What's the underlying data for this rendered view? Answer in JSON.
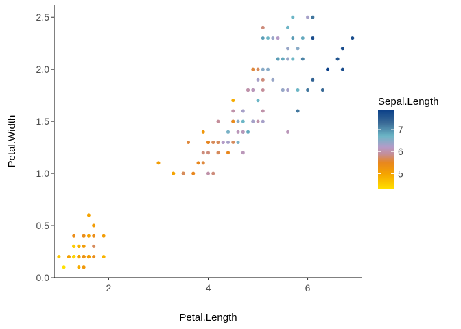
{
  "chart_data": {
    "type": "scatter",
    "title": "",
    "xlabel": "Petal.Length",
    "ylabel": "Petal.Width",
    "xlim": [
      0.905,
      7.095
    ],
    "ylim": [
      0.0,
      2.62
    ],
    "x_ticks": [
      2,
      4,
      6
    ],
    "x_tick_labels": [
      "2",
      "4",
      "6"
    ],
    "y_ticks": [
      0.0,
      0.5,
      1.0,
      1.5,
      2.0,
      2.5
    ],
    "y_tick_labels": [
      "0.0",
      "0.5",
      "1.0",
      "1.5",
      "2.0",
      "2.5"
    ],
    "grid": false,
    "legend": {
      "title": "Sepal.Length",
      "position": "right",
      "type": "colorbar",
      "range": [
        4.3,
        7.9
      ],
      "ticks": [
        5,
        6,
        7
      ],
      "tick_labels": [
        "5",
        "6",
        "7"
      ],
      "color_stops": [
        {
          "value": 4.3,
          "color": "#FFE000"
        },
        {
          "value": 5.0,
          "color": "#F5A300"
        },
        {
          "value": 5.5,
          "color": "#E8871E"
        },
        {
          "value": 5.9,
          "color": "#C48E9A"
        },
        {
          "value": 6.2,
          "color": "#B59BC8"
        },
        {
          "value": 6.7,
          "color": "#6CB6C6"
        },
        {
          "value": 7.3,
          "color": "#3A6A96"
        },
        {
          "value": 7.9,
          "color": "#0A3F88"
        }
      ]
    },
    "series": [
      {
        "color_by": "Sepal.Length",
        "points": [
          [
            1.4,
            0.2,
            5.1
          ],
          [
            1.4,
            0.2,
            4.9
          ],
          [
            1.3,
            0.2,
            4.7
          ],
          [
            1.5,
            0.2,
            4.6
          ],
          [
            1.4,
            0.2,
            5.0
          ],
          [
            1.7,
            0.4,
            5.4
          ],
          [
            1.4,
            0.3,
            4.6
          ],
          [
            1.5,
            0.2,
            5.0
          ],
          [
            1.4,
            0.2,
            4.4
          ],
          [
            1.5,
            0.1,
            4.9
          ],
          [
            1.5,
            0.2,
            5.4
          ],
          [
            1.6,
            0.2,
            4.8
          ],
          [
            1.4,
            0.1,
            4.8
          ],
          [
            1.1,
            0.1,
            4.3
          ],
          [
            1.2,
            0.2,
            5.8
          ],
          [
            1.5,
            0.4,
            5.7
          ],
          [
            1.3,
            0.4,
            5.4
          ],
          [
            1.4,
            0.3,
            5.1
          ],
          [
            1.7,
            0.3,
            5.7
          ],
          [
            1.5,
            0.3,
            5.1
          ],
          [
            1.7,
            0.2,
            5.4
          ],
          [
            1.5,
            0.4,
            5.1
          ],
          [
            1.0,
            0.2,
            4.6
          ],
          [
            1.7,
            0.5,
            5.1
          ],
          [
            1.9,
            0.2,
            4.8
          ],
          [
            1.6,
            0.2,
            5.0
          ],
          [
            1.6,
            0.4,
            5.0
          ],
          [
            1.5,
            0.2,
            5.2
          ],
          [
            1.4,
            0.2,
            5.2
          ],
          [
            1.6,
            0.2,
            4.7
          ],
          [
            1.6,
            0.2,
            4.8
          ],
          [
            1.5,
            0.4,
            5.4
          ],
          [
            1.5,
            0.1,
            5.2
          ],
          [
            1.4,
            0.2,
            5.5
          ],
          [
            1.5,
            0.2,
            4.9
          ],
          [
            1.2,
            0.2,
            5.0
          ],
          [
            1.3,
            0.2,
            5.5
          ],
          [
            1.4,
            0.1,
            4.9
          ],
          [
            1.3,
            0.2,
            4.4
          ],
          [
            1.5,
            0.2,
            5.1
          ],
          [
            1.3,
            0.3,
            5.0
          ],
          [
            1.3,
            0.3,
            4.5
          ],
          [
            1.3,
            0.2,
            4.4
          ],
          [
            1.6,
            0.6,
            5.0
          ],
          [
            1.9,
            0.4,
            5.1
          ],
          [
            1.4,
            0.3,
            4.8
          ],
          [
            1.6,
            0.2,
            5.1
          ],
          [
            1.4,
            0.2,
            4.6
          ],
          [
            1.5,
            0.2,
            5.3
          ],
          [
            1.4,
            0.2,
            5.0
          ],
          [
            4.7,
            1.4,
            7.0
          ],
          [
            4.5,
            1.5,
            6.4
          ],
          [
            4.9,
            1.5,
            6.9
          ],
          [
            4.0,
            1.3,
            5.5
          ],
          [
            4.6,
            1.5,
            6.5
          ],
          [
            4.5,
            1.3,
            5.7
          ],
          [
            4.7,
            1.6,
            6.3
          ],
          [
            3.3,
            1.0,
            4.9
          ],
          [
            4.6,
            1.3,
            6.6
          ],
          [
            3.9,
            1.4,
            5.2
          ],
          [
            3.5,
            1.0,
            5.0
          ],
          [
            4.2,
            1.5,
            5.9
          ],
          [
            4.0,
            1.0,
            6.0
          ],
          [
            4.7,
            1.4,
            6.1
          ],
          [
            3.6,
            1.3,
            5.6
          ],
          [
            4.4,
            1.4,
            6.7
          ],
          [
            4.5,
            1.5,
            5.6
          ],
          [
            4.1,
            1.0,
            5.8
          ],
          [
            4.5,
            1.5,
            6.2
          ],
          [
            3.9,
            1.1,
            5.6
          ],
          [
            4.8,
            1.8,
            5.9
          ],
          [
            4.0,
            1.3,
            6.1
          ],
          [
            4.9,
            1.5,
            6.3
          ],
          [
            4.7,
            1.2,
            6.1
          ],
          [
            4.3,
            1.3,
            6.4
          ],
          [
            4.4,
            1.4,
            6.6
          ],
          [
            4.8,
            1.4,
            6.8
          ],
          [
            5.0,
            1.7,
            6.7
          ],
          [
            4.5,
            1.5,
            6.0
          ],
          [
            3.5,
            1.0,
            5.7
          ],
          [
            3.8,
            1.1,
            5.5
          ],
          [
            3.7,
            1.0,
            5.5
          ],
          [
            3.9,
            1.2,
            5.8
          ],
          [
            5.1,
            1.6,
            6.0
          ],
          [
            4.5,
            1.5,
            5.4
          ],
          [
            4.5,
            1.6,
            6.0
          ],
          [
            4.7,
            1.5,
            6.7
          ],
          [
            4.4,
            1.3,
            6.3
          ],
          [
            4.1,
            1.3,
            5.6
          ],
          [
            4.0,
            1.3,
            5.5
          ],
          [
            4.4,
            1.2,
            5.5
          ],
          [
            4.6,
            1.4,
            6.1
          ],
          [
            4.0,
            1.2,
            5.8
          ],
          [
            3.3,
            1.0,
            5.0
          ],
          [
            4.2,
            1.3,
            5.6
          ],
          [
            4.2,
            1.2,
            5.7
          ],
          [
            4.2,
            1.3,
            5.7
          ],
          [
            4.3,
            1.3,
            6.2
          ],
          [
            3.0,
            1.1,
            5.1
          ],
          [
            4.1,
            1.3,
            5.7
          ],
          [
            6.0,
            2.5,
            6.3
          ],
          [
            5.1,
            1.9,
            5.8
          ],
          [
            5.9,
            2.1,
            7.1
          ],
          [
            5.6,
            1.8,
            6.3
          ],
          [
            5.8,
            2.2,
            6.5
          ],
          [
            6.6,
            2.1,
            7.6
          ],
          [
            4.5,
            1.7,
            4.9
          ],
          [
            6.3,
            1.8,
            7.3
          ],
          [
            5.8,
            1.8,
            6.7
          ],
          [
            6.1,
            2.5,
            7.2
          ],
          [
            5.1,
            2.0,
            6.5
          ],
          [
            5.3,
            1.9,
            6.4
          ],
          [
            5.5,
            2.1,
            6.8
          ],
          [
            5.0,
            2.0,
            5.7
          ],
          [
            5.1,
            2.4,
            5.8
          ],
          [
            5.3,
            2.3,
            6.4
          ],
          [
            5.5,
            1.8,
            6.5
          ],
          [
            6.7,
            2.2,
            7.7
          ],
          [
            6.9,
            2.3,
            7.7
          ],
          [
            5.0,
            1.5,
            6.0
          ],
          [
            5.7,
            2.3,
            6.9
          ],
          [
            4.9,
            2.0,
            5.6
          ],
          [
            6.7,
            2.0,
            7.7
          ],
          [
            4.9,
            1.8,
            6.3
          ],
          [
            5.7,
            2.1,
            6.7
          ],
          [
            6.0,
            1.8,
            7.2
          ],
          [
            4.8,
            1.8,
            6.2
          ],
          [
            4.9,
            1.8,
            6.1
          ],
          [
            5.6,
            2.1,
            6.4
          ],
          [
            5.8,
            1.6,
            7.2
          ],
          [
            6.1,
            1.9,
            7.4
          ],
          [
            6.4,
            2.0,
            7.9
          ],
          [
            5.6,
            2.2,
            6.4
          ],
          [
            5.1,
            1.5,
            6.3
          ],
          [
            5.6,
            1.4,
            6.1
          ],
          [
            6.1,
            2.3,
            7.7
          ],
          [
            5.6,
            2.4,
            6.3
          ],
          [
            5.5,
            1.8,
            6.4
          ],
          [
            4.8,
            1.8,
            6.0
          ],
          [
            5.4,
            2.1,
            6.9
          ],
          [
            5.6,
            2.4,
            6.7
          ],
          [
            5.1,
            2.3,
            6.9
          ],
          [
            5.1,
            1.9,
            5.8
          ],
          [
            5.9,
            2.3,
            6.8
          ],
          [
            5.7,
            2.5,
            6.7
          ],
          [
            5.2,
            2.3,
            6.7
          ],
          [
            5.0,
            1.9,
            6.3
          ],
          [
            5.2,
            2.0,
            6.5
          ],
          [
            5.4,
            2.3,
            6.2
          ],
          [
            5.1,
            1.8,
            5.9
          ]
        ]
      }
    ]
  }
}
